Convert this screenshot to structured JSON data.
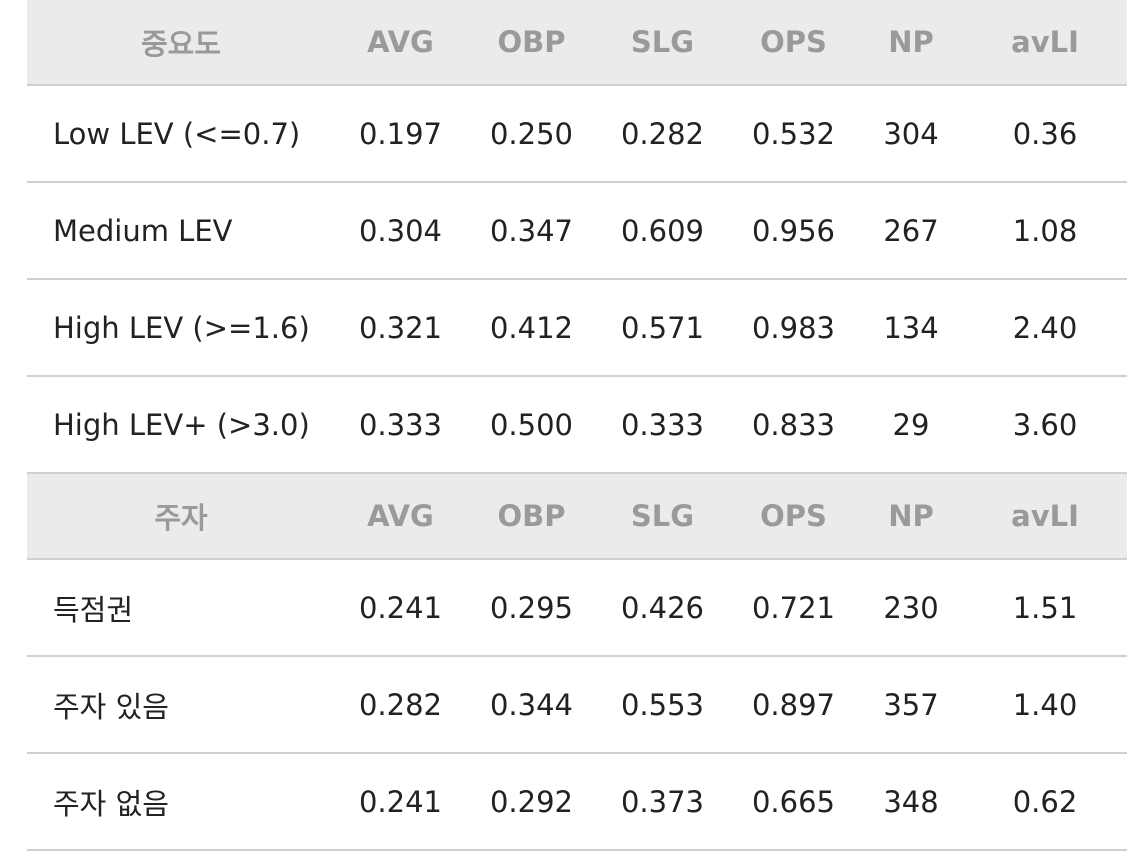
{
  "sections": [
    {
      "header": [
        "중요도",
        "AVG",
        "OBP",
        "SLG",
        "OPS",
        "NP",
        "avLI"
      ],
      "rows": [
        [
          "Low LEV (<=0.7)",
          "0.197",
          "0.250",
          "0.282",
          "0.532",
          "304",
          "0.36"
        ],
        [
          "Medium LEV",
          "0.304",
          "0.347",
          "0.609",
          "0.956",
          "267",
          "1.08"
        ],
        [
          "High LEV (>=1.6)",
          "0.321",
          "0.412",
          "0.571",
          "0.983",
          "134",
          "2.40"
        ],
        [
          "High LEV+ (>3.0)",
          "0.333",
          "0.500",
          "0.333",
          "0.833",
          "29",
          "3.60"
        ]
      ]
    },
    {
      "header": [
        "주자",
        "AVG",
        "OBP",
        "SLG",
        "OPS",
        "NP",
        "avLI"
      ],
      "rows": [
        [
          "득점권",
          "0.241",
          "0.295",
          "0.426",
          "0.721",
          "230",
          "1.51"
        ],
        [
          "주자 있음",
          "0.282",
          "0.344",
          "0.553",
          "0.897",
          "357",
          "1.40"
        ],
        [
          "주자 없음",
          "0.241",
          "0.292",
          "0.373",
          "0.665",
          "348",
          "0.62"
        ]
      ]
    }
  ]
}
